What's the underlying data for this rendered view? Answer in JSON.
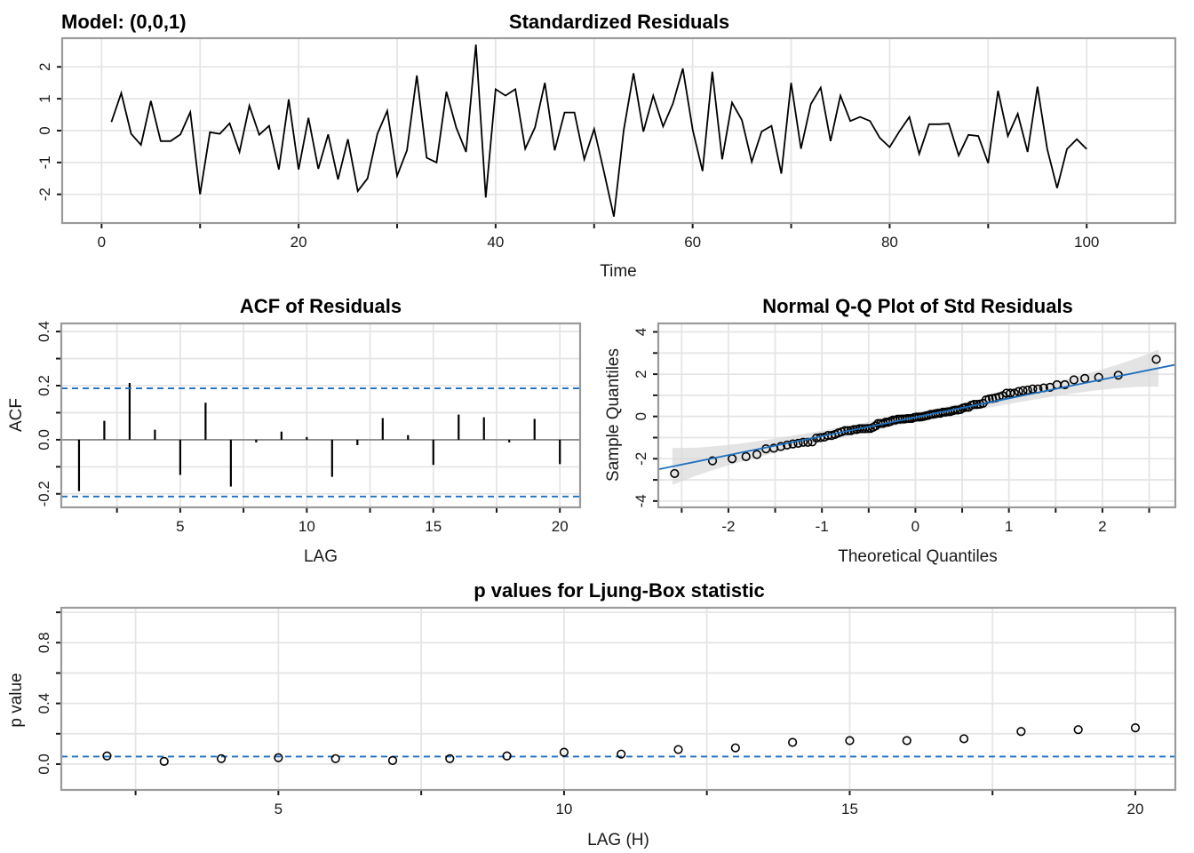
{
  "chart_data": [
    {
      "type": "line",
      "name": "standardized-residuals",
      "model_label": "Model: (0,0,1)",
      "title": "Standardized Residuals",
      "xlabel": "Time",
      "ylabel": "",
      "xlim": [
        -4,
        109
      ],
      "ylim": [
        -2.9,
        2.9
      ],
      "xticks": [
        0,
        20,
        40,
        60,
        80,
        100
      ],
      "xtick_labels": [
        "0",
        "20",
        "40",
        "60",
        "80",
        "100"
      ],
      "yticks": [
        -2,
        -1,
        0,
        1,
        2
      ],
      "ytick_labels": [
        "-2",
        "-1",
        "0",
        "1",
        "2"
      ],
      "grid": true,
      "x": [
        1,
        2,
        3,
        4,
        5,
        6,
        7,
        8,
        9,
        10,
        11,
        12,
        13,
        14,
        15,
        16,
        17,
        18,
        19,
        20,
        21,
        22,
        23,
        24,
        25,
        26,
        27,
        28,
        29,
        30,
        31,
        32,
        33,
        34,
        35,
        36,
        37,
        38,
        39,
        40,
        41,
        42,
        43,
        44,
        45,
        46,
        47,
        48,
        49,
        50,
        51,
        52,
        53,
        54,
        55,
        56,
        57,
        58,
        59,
        60,
        61,
        62,
        63,
        64,
        65,
        66,
        67,
        68,
        69,
        70,
        71,
        72,
        73,
        74,
        75,
        76,
        77,
        78,
        79,
        80,
        81,
        82,
        83,
        84,
        85,
        86,
        87,
        88,
        89,
        90,
        91,
        92,
        93,
        94,
        95,
        96,
        97,
        98,
        99,
        100
      ],
      "values": [
        0.27,
        1.18,
        -0.1,
        -0.45,
        0.93,
        -0.33,
        -0.33,
        -0.12,
        0.58,
        -2.0,
        -0.05,
        -0.1,
        0.23,
        -0.67,
        0.78,
        -0.13,
        0.15,
        -1.22,
        0.98,
        -1.22,
        0.4,
        -1.2,
        -0.12,
        -1.53,
        -0.27,
        -1.9,
        -1.5,
        -0.1,
        0.62,
        -1.42,
        -0.62,
        1.73,
        -0.85,
        -1.0,
        1.22,
        0.1,
        -0.67,
        2.7,
        -2.1,
        1.3,
        1.1,
        1.3,
        -0.57,
        0.1,
        1.5,
        -0.62,
        0.57,
        0.57,
        -0.9,
        0.05,
        -1.3,
        -2.7,
        0.0,
        1.8,
        -0.03,
        1.1,
        0.13,
        0.85,
        1.95,
        0.03,
        -1.27,
        1.85,
        -0.9,
        0.88,
        0.33,
        -0.98,
        -0.03,
        0.15,
        -1.35,
        1.5,
        -0.57,
        0.83,
        1.35,
        -0.33,
        1.1,
        0.3,
        0.43,
        0.3,
        -0.23,
        -0.52,
        -0.02,
        0.43,
        -0.73,
        0.2,
        0.2,
        0.22,
        -0.78,
        -0.13,
        -0.17,
        -1.02,
        1.25,
        -0.17,
        0.53,
        -0.67,
        1.38,
        -0.58,
        -1.8,
        -0.58,
        -0.27,
        -0.58
      ],
      "line_color": "#000000"
    },
    {
      "type": "bar",
      "name": "acf-of-residuals",
      "title": "ACF of Residuals",
      "xlabel": "LAG",
      "ylabel": "ACF",
      "xlim": [
        0.3,
        20.8
      ],
      "ylim": [
        -0.25,
        0.43
      ],
      "xticks": [
        5,
        10,
        15,
        20
      ],
      "xtick_labels": [
        "5",
        "10",
        "15",
        "20"
      ],
      "yticks": [
        -0.2,
        0.0,
        0.2,
        0.4
      ],
      "ytick_labels": [
        "-0.2",
        "0.0",
        "0.2",
        "0.4"
      ],
      "grid": true,
      "lags": [
        1,
        2,
        3,
        4,
        5,
        6,
        7,
        8,
        9,
        10,
        11,
        12,
        13,
        14,
        15,
        16,
        17,
        18,
        19,
        20
      ],
      "values": [
        -0.19,
        0.07,
        0.21,
        0.037,
        -0.13,
        0.137,
        -0.173,
        -0.01,
        0.03,
        0.01,
        -0.137,
        -0.02,
        0.08,
        0.017,
        -0.093,
        0.093,
        0.083,
        -0.01,
        0.077,
        -0.09
      ],
      "conf_upper": 0.19,
      "conf_lower": -0.21,
      "conf_color": "#1f6fbf"
    },
    {
      "type": "scatter",
      "name": "normal-qq-plot",
      "title": "Normal Q-Q Plot of Std Residuals",
      "xlabel": "Theoretical Quantiles",
      "ylabel": "Sample Quantiles",
      "xlim": [
        -2.75,
        2.78
      ],
      "ylim": [
        -4.3,
        4.4
      ],
      "xticks": [
        -2,
        -1,
        0,
        1,
        2
      ],
      "xtick_labels": [
        "-2",
        "-1",
        "0",
        "1",
        "2"
      ],
      "yticks": [
        -4,
        -2,
        0,
        2,
        4
      ],
      "ytick_labels": [
        "-4",
        "-2",
        "0",
        "2",
        "4"
      ],
      "grid": true,
      "sample_source": "standardized-residuals",
      "fit_line": {
        "intercept": -0.04,
        "slope": 0.895,
        "color": "#1f6fbf"
      },
      "band_color": "#d9d9d9"
    },
    {
      "type": "scatter",
      "name": "ljung-box-p-values",
      "title": "p values for Ljung-Box statistic",
      "xlabel": "LAG (H)",
      "ylabel": "p value",
      "xlim": [
        1.2,
        20.7
      ],
      "ylim": [
        -0.17,
        1.03
      ],
      "xticks": [
        5,
        10,
        15,
        20
      ],
      "xtick_labels": [
        "5",
        "10",
        "15",
        "20"
      ],
      "yticks": [
        0.0,
        0.4,
        0.8
      ],
      "ytick_labels": [
        "0.0",
        "0.4",
        "0.8"
      ],
      "grid": true,
      "lags": [
        2,
        3,
        4,
        5,
        6,
        7,
        8,
        9,
        10,
        11,
        12,
        13,
        14,
        15,
        16,
        17,
        18,
        19,
        20
      ],
      "values": [
        0.054,
        0.018,
        0.036,
        0.042,
        0.036,
        0.024,
        0.036,
        0.054,
        0.078,
        0.066,
        0.096,
        0.107,
        0.143,
        0.155,
        0.155,
        0.167,
        0.215,
        0.227,
        0.239
      ],
      "threshold": 0.05,
      "threshold_color": "#1f6fbf"
    }
  ]
}
